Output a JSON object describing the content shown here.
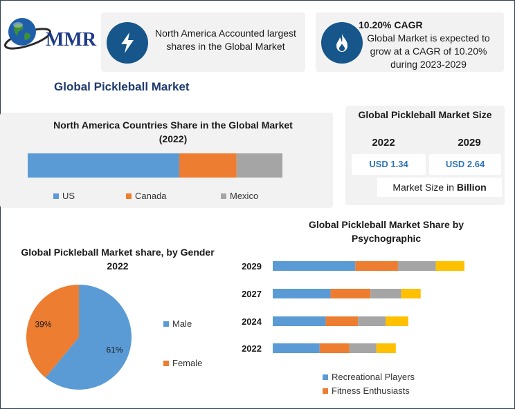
{
  "brand": {
    "logo_text": "MMR"
  },
  "page_title": "Global Pickleball Market",
  "callouts": {
    "left": {
      "icon": "lightning-icon",
      "text": "North America Accounted largest shares in the Global Market"
    },
    "right": {
      "icon": "flame-icon",
      "heading": "10.20% CAGR",
      "text": "Global Market is expected to grow at a CAGR of 10.20% during 2023-2029"
    }
  },
  "market_size": {
    "title": "Global Pickleball Market Size",
    "year_a": "2022",
    "year_b": "2029",
    "value_a": "USD 1.34",
    "value_b": "USD 2.64",
    "note_prefix": "Market Size in",
    "note_bold": "Billion"
  },
  "colors": {
    "blue": "#5b9bd5",
    "orange": "#ed7d31",
    "gray": "#a5a5a5",
    "yellow": "#ffc000",
    "accent": "#16568a"
  },
  "chart_data": [
    {
      "id": "countries",
      "type": "bar",
      "orientation": "horizontal-stacked",
      "title": "North America Countries Share in the Global Market (2022)",
      "series": [
        {
          "name": "US",
          "values": [
            59.5
          ]
        },
        {
          "name": "Canada",
          "values": [
            22.5
          ]
        },
        {
          "name": "Mexico",
          "values": [
            18
          ]
        }
      ],
      "legend_position": "bottom"
    },
    {
      "id": "gender",
      "type": "pie",
      "title": "Global Pickleball Market share, by Gender 2022",
      "labels": [
        "Male",
        "Female"
      ],
      "values": [
        61,
        39
      ],
      "data_labels": [
        "61%",
        "39%"
      ],
      "legend_position": "right"
    },
    {
      "id": "psychographic",
      "type": "bar",
      "orientation": "horizontal-stacked",
      "title": "Global Pickleball Market Share by Psychographic",
      "categories": [
        "2029",
        "2027",
        "2024",
        "2022"
      ],
      "series": [
        {
          "name": "Recreational Players",
          "values": [
            1.53,
            1.07,
            0.98,
            0.87
          ]
        },
        {
          "name": "Fitness Enthusiasts",
          "values": [
            0.79,
            0.74,
            0.6,
            0.55
          ]
        },
        {
          "name": "",
          "values": [
            0.7,
            0.57,
            0.51,
            0.5
          ]
        },
        {
          "name": "",
          "values": [
            0.53,
            0.36,
            0.42,
            0.36
          ]
        }
      ],
      "legend_position": "bottom"
    }
  ]
}
